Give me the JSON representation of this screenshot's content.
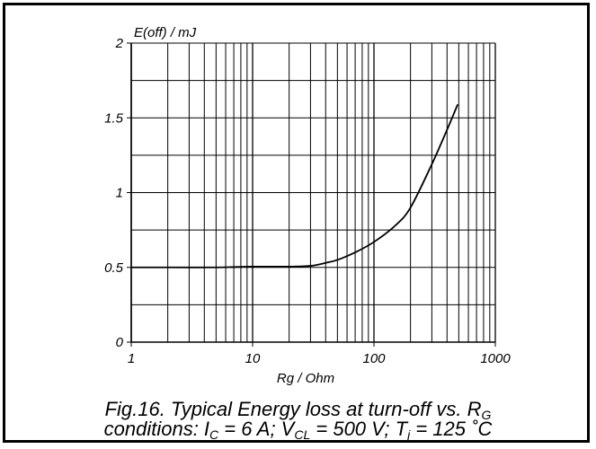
{
  "chart_data": {
    "type": "line",
    "x_scale": "log",
    "xlim": [
      1,
      1000
    ],
    "ylim": [
      0,
      2
    ],
    "grid": true,
    "xlabel": "Rg / Ohm",
    "ylabel": "E(off) / mJ",
    "x_ticks": [
      {
        "value": 1,
        "label": "1"
      },
      {
        "value": 10,
        "label": "10"
      },
      {
        "value": 100,
        "label": "100"
      },
      {
        "value": 1000,
        "label": "1000"
      }
    ],
    "y_ticks": [
      {
        "value": 0,
        "label": "0"
      },
      {
        "value": 0.5,
        "label": "0.5"
      },
      {
        "value": 1,
        "label": "1"
      },
      {
        "value": 1.5,
        "label": "1.5"
      },
      {
        "value": 2,
        "label": "2"
      }
    ],
    "series": [
      {
        "x": [
          1,
          2,
          5,
          10,
          20,
          30,
          40,
          50,
          70,
          100,
          150,
          200,
          300,
          400,
          490
        ],
        "y": [
          0.5,
          0.5,
          0.5,
          0.505,
          0.505,
          0.51,
          0.53,
          0.55,
          0.6,
          0.67,
          0.78,
          0.9,
          1.19,
          1.42,
          1.59
        ]
      }
    ],
    "caption": {
      "line1_main": "Fig.16.   Typical Energy loss at turn-off vs. R",
      "line1_sub": "G",
      "line2": [
        {
          "text": "conditions: I"
        },
        {
          "text": "C",
          "sub": true
        },
        {
          "text": " = 6 A; V"
        },
        {
          "text": "CL",
          "sub": true
        },
        {
          "text": " = 500 V; T"
        },
        {
          "text": "j",
          "sub": true
        },
        {
          "text": " = 125 ˚C"
        }
      ]
    },
    "colors": {
      "line": "#000000",
      "grid": "#000000",
      "background": "#ffffff"
    }
  }
}
